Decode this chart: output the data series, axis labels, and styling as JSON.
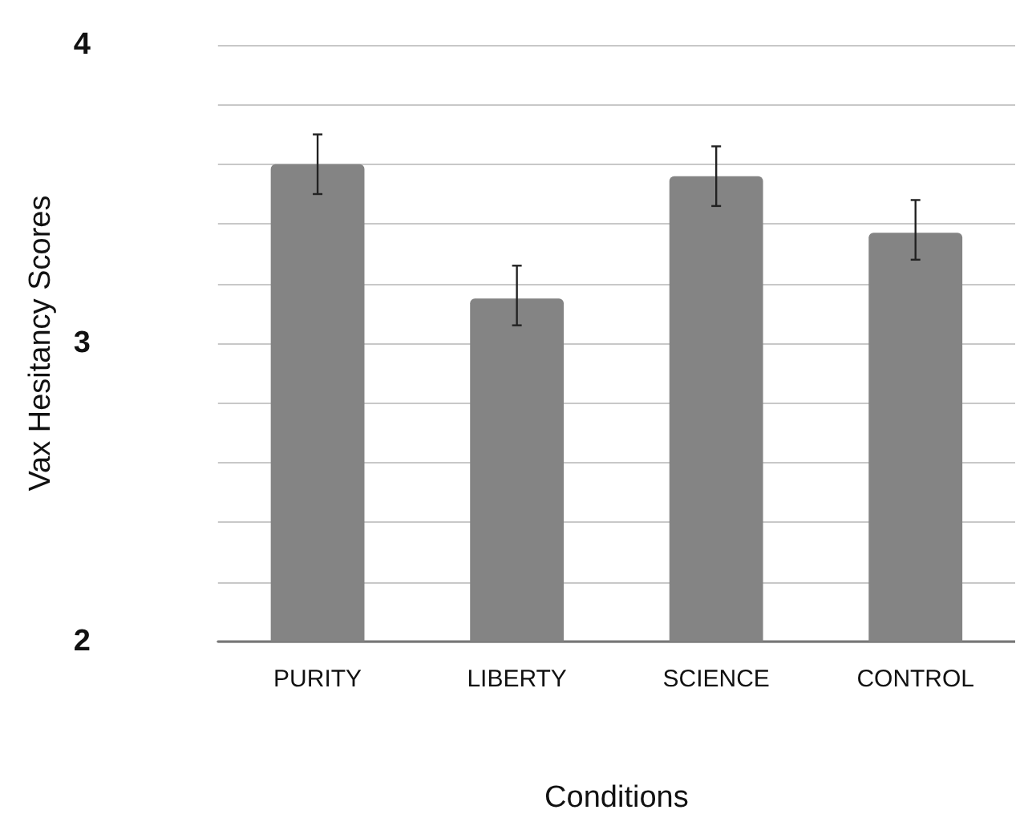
{
  "chart_data": {
    "type": "bar",
    "xlabel": "Conditions",
    "ylabel": "Vax Hesitancy Scores",
    "categories": [
      "PURITY",
      "LIBERTY",
      "SCIENCE",
      "CONTROL"
    ],
    "series": [
      {
        "color": "#848484",
        "values": [
          3.6,
          3.15,
          3.56,
          3.37
        ],
        "errors": [
          [
            3.5,
            3.7
          ],
          [
            3.06,
            3.26
          ],
          [
            3.46,
            3.66
          ],
          [
            3.28,
            3.48
          ]
        ]
      }
    ],
    "ylim": [
      2,
      4
    ],
    "yticks": [
      2,
      {
        "value": 2.2,
        "label": null
      },
      {
        "value": 2.4,
        "label": null
      },
      {
        "value": 2.6,
        "label": null
      },
      {
        "value": 2.8,
        "label": null
      },
      3,
      {
        "value": 3.2,
        "label": null
      },
      {
        "value": 3.4,
        "label": null
      },
      {
        "value": 3.6,
        "label": null
      },
      {
        "value": 3.8,
        "label": null
      },
      4
    ],
    "grid": "y"
  }
}
